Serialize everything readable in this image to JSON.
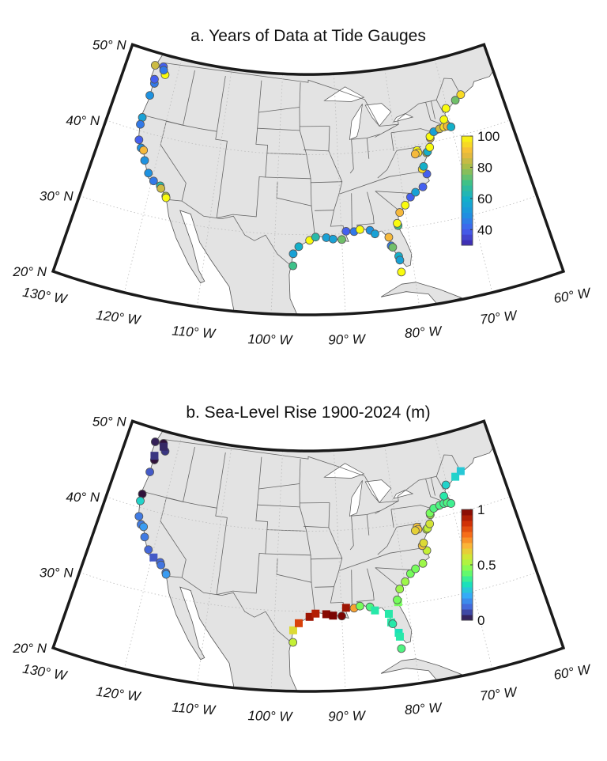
{
  "panels": [
    {
      "title": "a. Years of Data at Tide Gauges",
      "variable": "years",
      "colorbar": {
        "min": 30,
        "max": 100,
        "ticks": [
          40,
          60,
          80,
          100
        ],
        "tick_labels": [
          "40",
          "60",
          "80",
          "100"
        ],
        "colormap": "parula"
      }
    },
    {
      "title": "b. Sea-Level Rise 1900-2024 (m)",
      "variable": "slr",
      "colorbar": {
        "min": 0,
        "max": 1,
        "ticks": [
          0,
          0.5,
          1
        ],
        "tick_labels": [
          "0",
          "0.5",
          "1"
        ],
        "colormap": "jet"
      }
    }
  ],
  "lat_labels": [
    {
      "value": 20,
      "text": "20° N"
    },
    {
      "value": 30,
      "text": "30° N"
    },
    {
      "value": 40,
      "text": "40° N"
    },
    {
      "value": 50,
      "text": "50° N"
    }
  ],
  "lon_labels": [
    {
      "value": -130,
      "text": "130° W"
    },
    {
      "value": -120,
      "text": "120° W"
    },
    {
      "value": -110,
      "text": "110° W"
    },
    {
      "value": -100,
      "text": "100° W"
    },
    {
      "value": -90,
      "text": "90° W"
    },
    {
      "value": -80,
      "text": "80° W"
    },
    {
      "value": -70,
      "text": "70° W"
    },
    {
      "value": -60,
      "text": "60° W"
    }
  ],
  "colors": {
    "land": "#e3e3e3",
    "ocean": "#ffffff",
    "frame": "#1a1a1a",
    "border": "#666666"
  },
  "stations": [
    [
      -124.6,
      48.4,
      85,
      0.02,
      "o"
    ],
    [
      -123.0,
      48.5,
      40,
      0.0,
      "o"
    ],
    [
      -122.3,
      47.6,
      100,
      0.05,
      "o"
    ],
    [
      -122.8,
      48.1,
      45,
      0.03,
      "s"
    ],
    [
      -123.8,
      46.2,
      45,
      0.0,
      "o"
    ],
    [
      -124.0,
      46.7,
      40,
      0.05,
      "s"
    ],
    [
      -124.0,
      44.6,
      50,
      0.1,
      "o"
    ],
    [
      -124.2,
      41.7,
      55,
      0.0,
      "o"
    ],
    [
      -124.2,
      40.8,
      45,
      0.3,
      "o"
    ],
    [
      -123.7,
      38.9,
      40,
      0.15,
      "o"
    ],
    [
      -123.0,
      38.0,
      50,
      0.15,
      "o"
    ],
    [
      -122.5,
      37.8,
      90,
      0.2,
      "o"
    ],
    [
      -121.9,
      36.6,
      50,
      0.15,
      "o"
    ],
    [
      -120.8,
      35.2,
      50,
      0.12,
      "o"
    ],
    [
      -119.7,
      34.4,
      45,
      0.1,
      "s"
    ],
    [
      -118.5,
      34.0,
      65,
      0.12,
      "o"
    ],
    [
      -118.3,
      33.7,
      85,
      0.14,
      "o"
    ],
    [
      -117.3,
      32.9,
      80,
      0.15,
      "o"
    ],
    [
      -117.2,
      32.7,
      100,
      0.2,
      "o"
    ],
    [
      -97.2,
      26.1,
      70,
      0.55,
      "o"
    ],
    [
      -97.2,
      27.6,
      55,
      0.6,
      "s"
    ],
    [
      -96.4,
      28.5,
      60,
      0.85,
      "s"
    ],
    [
      -94.8,
      29.3,
      100,
      0.95,
      "s"
    ],
    [
      -93.9,
      29.7,
      65,
      0.92,
      "s"
    ],
    [
      -92.3,
      29.6,
      55,
      0.98,
      "s"
    ],
    [
      -91.3,
      29.4,
      55,
      1.0,
      "s"
    ],
    [
      -90.0,
      29.3,
      75,
      1.0,
      "o"
    ],
    [
      -89.3,
      30.3,
      40,
      0.95,
      "s"
    ],
    [
      -88.1,
      30.2,
      45,
      0.7,
      "o"
    ],
    [
      -87.2,
      30.4,
      100,
      0.45,
      "o"
    ],
    [
      -85.7,
      30.2,
      50,
      0.4,
      "o"
    ],
    [
      -85.0,
      29.7,
      55,
      0.35,
      "s"
    ],
    [
      -83.0,
      29.1,
      90,
      0.35,
      "s"
    ],
    [
      -82.8,
      28.0,
      45,
      0.35,
      "s"
    ],
    [
      -82.6,
      27.8,
      75,
      0.35,
      "o"
    ],
    [
      -81.9,
      26.6,
      60,
      0.33,
      "s"
    ],
    [
      -81.8,
      26.1,
      55,
      0.35,
      "s"
    ],
    [
      -81.8,
      24.6,
      100,
      0.4,
      "o"
    ],
    [
      -81.4,
      30.4,
      70,
      0.45,
      "s"
    ],
    [
      -81.5,
      30.7,
      100,
      0.45,
      "o"
    ],
    [
      -80.9,
      32.0,
      90,
      0.5,
      "o"
    ],
    [
      -79.9,
      32.8,
      100,
      0.5,
      "o"
    ],
    [
      -78.9,
      33.7,
      40,
      0.45,
      "o"
    ],
    [
      -78.0,
      34.2,
      55,
      0.45,
      "o"
    ],
    [
      -76.7,
      34.7,
      40,
      0.5,
      "o"
    ],
    [
      -75.7,
      36.2,
      40,
      0.55,
      "o"
    ],
    [
      -76.3,
      36.9,
      95,
      0.65,
      "o"
    ],
    [
      -76.0,
      37.2,
      60,
      0.6,
      "o"
    ],
    [
      -76.6,
      39.3,
      100,
      0.65,
      "o"
    ],
    [
      -76.5,
      39.0,
      95,
      0.65,
      "o"
    ],
    [
      -77.0,
      38.9,
      90,
      0.62,
      "o"
    ],
    [
      -75.1,
      38.8,
      80,
      0.55,
      "o"
    ],
    [
      -74.9,
      38.9,
      60,
      0.55,
      "o"
    ],
    [
      -74.4,
      39.4,
      100,
      0.58,
      "o"
    ],
    [
      -74.0,
      40.5,
      90,
      0.52,
      "o"
    ],
    [
      -74.0,
      40.7,
      100,
      0.45,
      "o"
    ],
    [
      -73.2,
      41.2,
      55,
      0.4,
      "o"
    ],
    [
      -72.1,
      41.4,
      85,
      0.4,
      "o"
    ],
    [
      -71.3,
      41.5,
      95,
      0.38,
      "o"
    ],
    [
      -70.7,
      41.5,
      90,
      0.4,
      "o"
    ],
    [
      -70.1,
      41.3,
      60,
      0.38,
      "o"
    ],
    [
      -71.0,
      42.4,
      100,
      0.35,
      "o"
    ],
    [
      -70.2,
      43.7,
      100,
      0.3,
      "o"
    ],
    [
      -68.2,
      44.4,
      75,
      0.3,
      "s"
    ],
    [
      -67.0,
      44.9,
      95,
      0.28,
      "s"
    ]
  ]
}
